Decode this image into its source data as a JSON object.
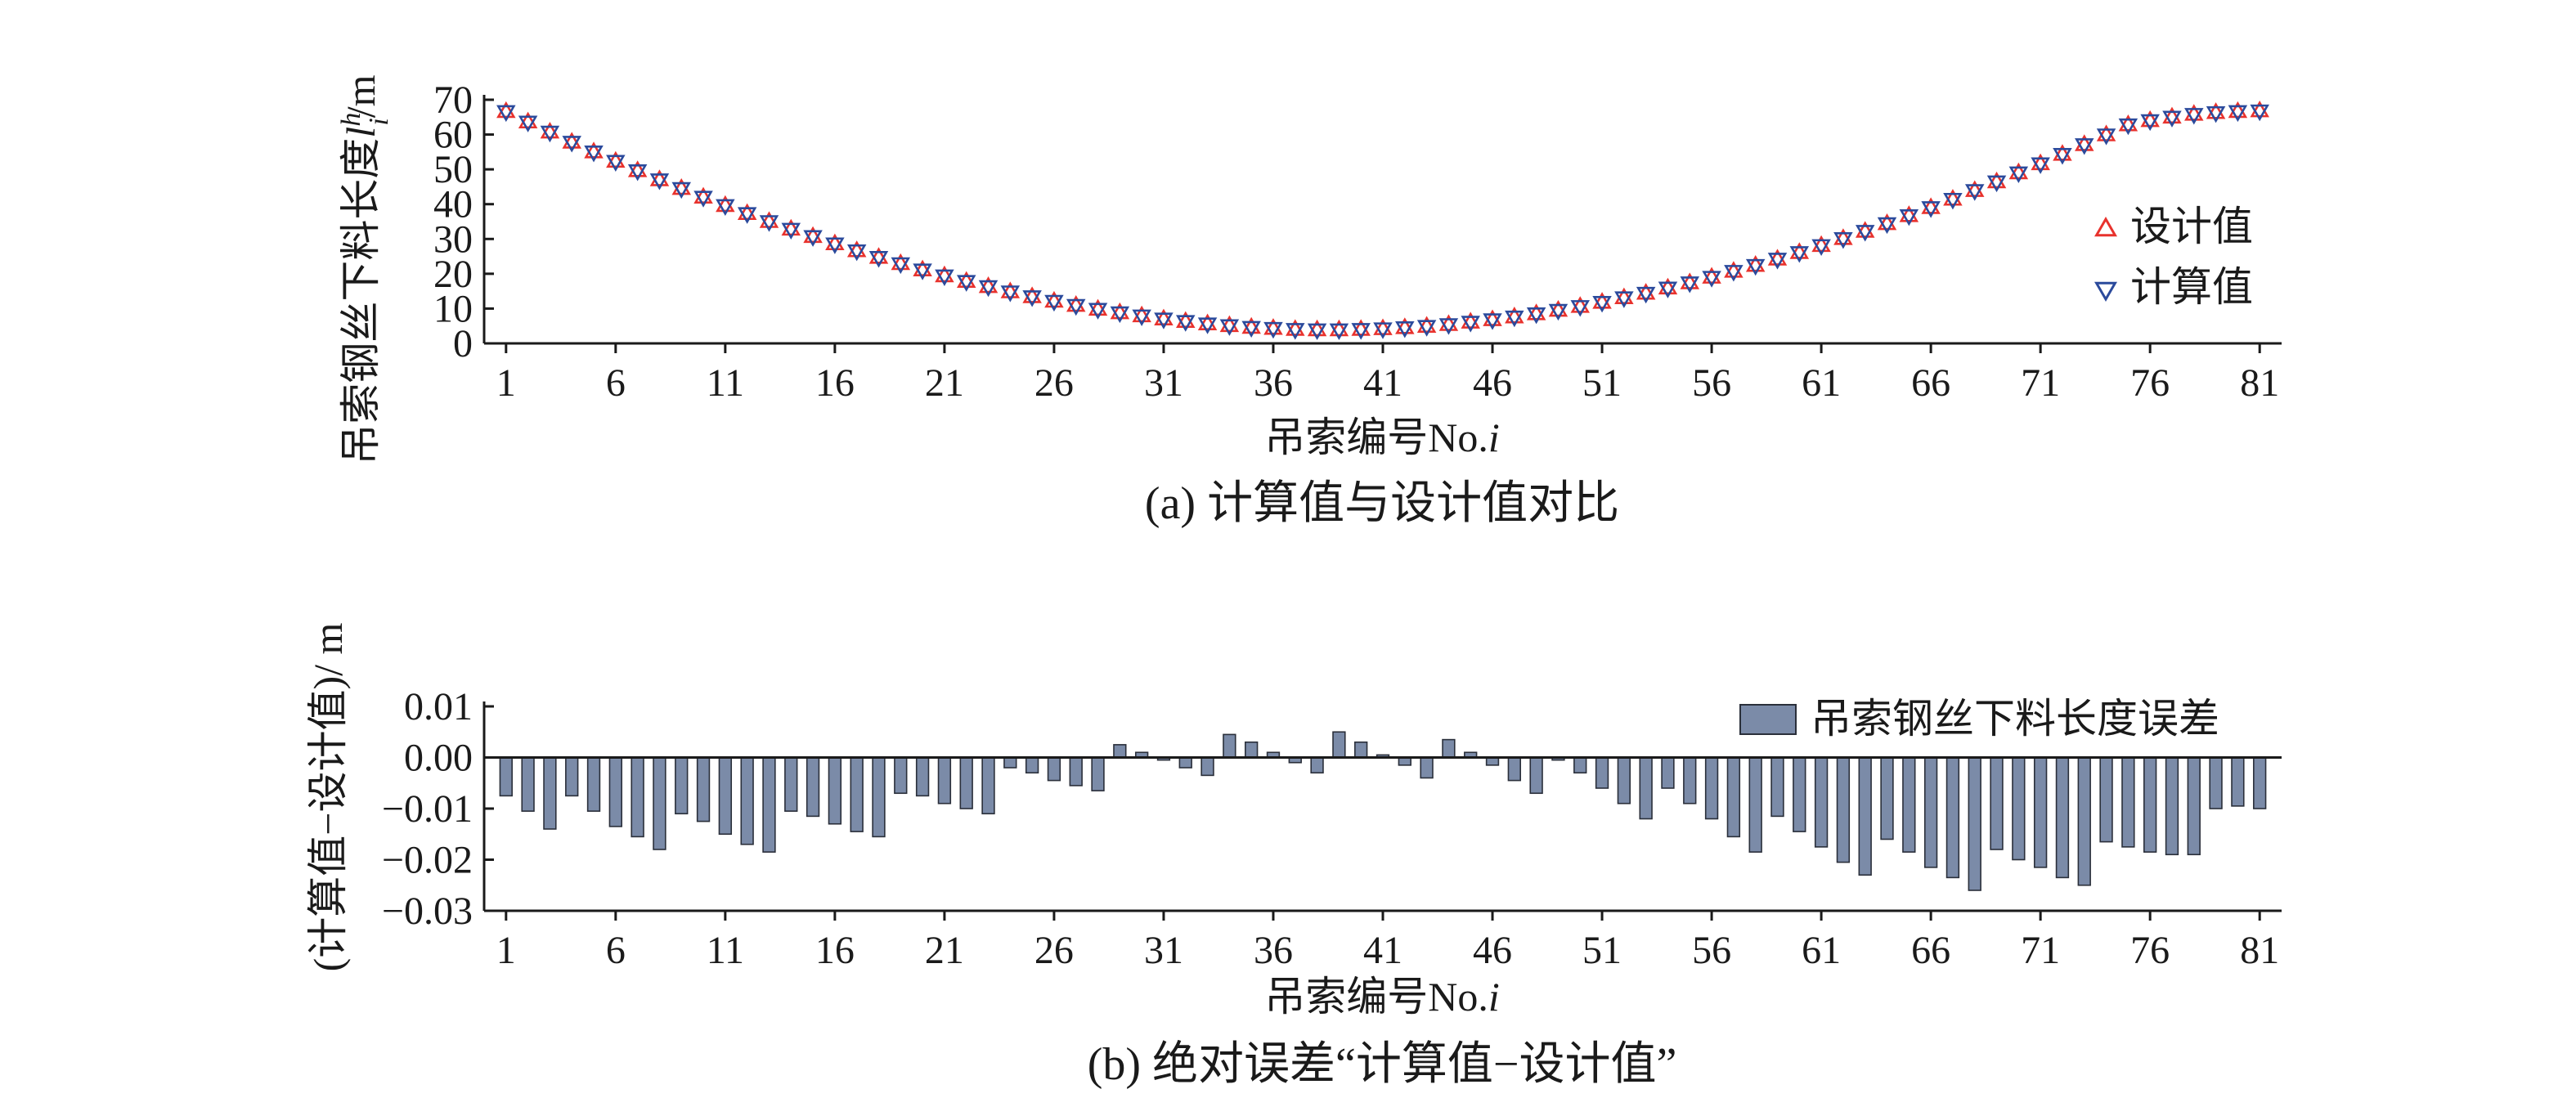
{
  "figure": {
    "caption_a": "(a) 计算值与设计值对比",
    "caption_b": "(b) 绝对误差“计算值−设计值”"
  },
  "chart_data": [
    {
      "type": "scatter",
      "ylabel": "吊索钢丝下料长度l_i^h/m",
      "ylabel_main": "吊索钢丝下料长度",
      "ylabel_sym": "l",
      "ylabel_sup": "h",
      "ylabel_sub": "i",
      "ylabel_unit": "/m",
      "xlabel_main": "吊索编号No.",
      "xlabel_sym": "i",
      "xlim": [
        0,
        82
      ],
      "ylim": [
        0,
        70
      ],
      "xticks": [
        1,
        6,
        11,
        16,
        21,
        26,
        31,
        36,
        41,
        46,
        51,
        56,
        61,
        66,
        71,
        76,
        81
      ],
      "yticks": [
        0,
        10,
        20,
        30,
        40,
        50,
        60,
        70
      ],
      "legend_position": "right",
      "series": [
        {
          "name": "设计值",
          "marker": "triangle-up",
          "color": "#e8322d",
          "x": [
            1,
            2,
            3,
            4,
            5,
            6,
            7,
            8,
            9,
            10,
            11,
            12,
            13,
            14,
            15,
            16,
            17,
            18,
            19,
            20,
            21,
            22,
            23,
            24,
            25,
            26,
            27,
            28,
            29,
            30,
            31,
            32,
            33,
            34,
            35,
            36,
            37,
            38,
            39,
            40,
            41,
            42,
            43,
            44,
            45,
            46,
            47,
            48,
            49,
            50,
            51,
            52,
            53,
            54,
            55,
            56,
            57,
            58,
            59,
            60,
            61,
            62,
            63,
            64,
            65,
            66,
            67,
            68,
            69,
            70,
            71,
            72,
            73,
            74,
            75,
            76,
            77,
            78,
            79,
            80,
            81
          ],
          "values": [
            66.6,
            63.6,
            60.7,
            57.8,
            55.0,
            52.3,
            49.6,
            47.0,
            44.5,
            42.0,
            39.6,
            37.3,
            35.0,
            32.8,
            30.7,
            28.6,
            26.6,
            24.7,
            22.9,
            21.1,
            19.4,
            17.8,
            16.3,
            14.8,
            13.4,
            12.1,
            10.9,
            9.8,
            8.8,
            7.9,
            7.0,
            6.3,
            5.6,
            5.1,
            4.6,
            4.3,
            4.0,
            3.9,
            3.9,
            4.0,
            4.2,
            4.5,
            4.9,
            5.4,
            6.1,
            6.8,
            7.6,
            8.5,
            9.5,
            10.6,
            11.8,
            13.1,
            14.4,
            15.9,
            17.4,
            19.0,
            20.7,
            22.4,
            24.2,
            26.1,
            28.1,
            30.1,
            32.2,
            34.4,
            36.7,
            39.0,
            41.4,
            43.9,
            46.4,
            49.0,
            51.6,
            54.3,
            57.1,
            59.9,
            62.8,
            64.0,
            65.0,
            65.8,
            66.3,
            66.6,
            66.8
          ]
        },
        {
          "name": "计算值",
          "marker": "triangle-down",
          "color": "#2b4a9c",
          "x": [
            1,
            2,
            3,
            4,
            5,
            6,
            7,
            8,
            9,
            10,
            11,
            12,
            13,
            14,
            15,
            16,
            17,
            18,
            19,
            20,
            21,
            22,
            23,
            24,
            25,
            26,
            27,
            28,
            29,
            30,
            31,
            32,
            33,
            34,
            35,
            36,
            37,
            38,
            39,
            40,
            41,
            42,
            43,
            44,
            45,
            46,
            47,
            48,
            49,
            50,
            51,
            52,
            53,
            54,
            55,
            56,
            57,
            58,
            59,
            60,
            61,
            62,
            63,
            64,
            65,
            66,
            67,
            68,
            69,
            70,
            71,
            72,
            73,
            74,
            75,
            76,
            77,
            78,
            79,
            80,
            81
          ],
          "values": [
            66.6,
            63.6,
            60.7,
            57.8,
            55.0,
            52.3,
            49.6,
            47.0,
            44.5,
            42.0,
            39.6,
            37.3,
            35.0,
            32.8,
            30.7,
            28.6,
            26.6,
            24.7,
            22.9,
            21.1,
            19.4,
            17.8,
            16.3,
            14.8,
            13.4,
            12.1,
            10.9,
            9.8,
            8.8,
            7.9,
            7.0,
            6.3,
            5.6,
            5.1,
            4.6,
            4.3,
            4.0,
            3.9,
            3.9,
            4.0,
            4.2,
            4.5,
            4.9,
            5.4,
            6.1,
            6.8,
            7.6,
            8.5,
            9.5,
            10.6,
            11.8,
            13.1,
            14.4,
            15.9,
            17.4,
            19.0,
            20.7,
            22.4,
            24.2,
            26.1,
            28.1,
            30.1,
            32.2,
            34.4,
            36.7,
            39.0,
            41.4,
            43.9,
            46.4,
            49.0,
            51.6,
            54.3,
            57.1,
            59.9,
            62.8,
            64.0,
            65.0,
            65.8,
            66.3,
            66.6,
            66.8
          ]
        }
      ]
    },
    {
      "type": "bar",
      "ylabel": "(计算值−设计值)/ m",
      "xlabel_main": "吊索编号No.",
      "xlabel_sym": "i",
      "xlim": [
        0,
        82
      ],
      "ylim": [
        -0.03,
        0.01
      ],
      "xticks": [
        1,
        6,
        11,
        16,
        21,
        26,
        31,
        36,
        41,
        46,
        51,
        56,
        61,
        66,
        71,
        76,
        81
      ],
      "yticks": [
        0.01,
        0.0,
        -0.01,
        -0.02,
        -0.03
      ],
      "ytick_labels": [
        "0.01",
        "0.00",
        "−0.01",
        "−0.02",
        "−0.03"
      ],
      "legend_position": "top-right",
      "series": [
        {
          "name": "吊索钢丝下料长度误差",
          "color": "#7b8ba8",
          "x": [
            1,
            2,
            3,
            4,
            5,
            6,
            7,
            8,
            9,
            10,
            11,
            12,
            13,
            14,
            15,
            16,
            17,
            18,
            19,
            20,
            21,
            22,
            23,
            24,
            25,
            26,
            27,
            28,
            29,
            30,
            31,
            32,
            33,
            34,
            35,
            36,
            37,
            38,
            39,
            40,
            41,
            42,
            43,
            44,
            45,
            46,
            47,
            48,
            49,
            50,
            51,
            52,
            53,
            54,
            55,
            56,
            57,
            58,
            59,
            60,
            61,
            62,
            63,
            64,
            65,
            66,
            67,
            68,
            69,
            70,
            71,
            72,
            73,
            74,
            75,
            76,
            77,
            78,
            79,
            80,
            81
          ],
          "values": [
            -0.0075,
            -0.0105,
            -0.014,
            -0.0075,
            -0.0105,
            -0.0135,
            -0.0155,
            -0.018,
            -0.011,
            -0.0125,
            -0.015,
            -0.017,
            -0.0185,
            -0.0105,
            -0.0115,
            -0.013,
            -0.0145,
            -0.0155,
            -0.007,
            -0.0075,
            -0.009,
            -0.01,
            -0.011,
            -0.002,
            -0.003,
            -0.0045,
            -0.0055,
            -0.0065,
            0.0025,
            0.001,
            -0.0005,
            -0.002,
            -0.0035,
            0.0045,
            0.003,
            0.001,
            -0.001,
            -0.003,
            0.005,
            0.003,
            0.0005,
            -0.0015,
            -0.004,
            0.0035,
            0.001,
            -0.0015,
            -0.0045,
            -0.007,
            -0.0005,
            -0.003,
            -0.006,
            -0.009,
            -0.012,
            -0.006,
            -0.009,
            -0.012,
            -0.0155,
            -0.0185,
            -0.0115,
            -0.0145,
            -0.0175,
            -0.0205,
            -0.023,
            -0.016,
            -0.0185,
            -0.0215,
            -0.0235,
            -0.026,
            -0.018,
            -0.02,
            -0.0215,
            -0.0235,
            -0.025,
            -0.0165,
            -0.0175,
            -0.0185,
            -0.019,
            -0.019,
            -0.01,
            -0.0095,
            -0.01
          ]
        }
      ]
    }
  ]
}
